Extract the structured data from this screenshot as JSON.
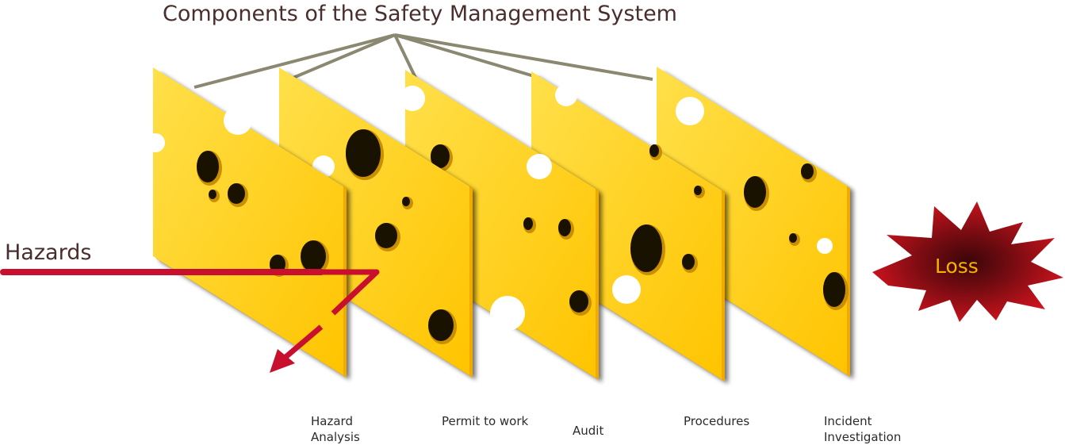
{
  "diagram": {
    "title": "Components of the Safety Management System",
    "hazards_label": "Hazards",
    "loss_label": "Loss",
    "layers": [
      {
        "id": "hazard-analysis",
        "label_lines": [
          "Hazard",
          "Analysis"
        ]
      },
      {
        "id": "permit-to-work",
        "label_lines": [
          "Permit to work"
        ]
      },
      {
        "id": "audit",
        "label_lines": [
          "Audit"
        ]
      },
      {
        "id": "procedures",
        "label_lines": [
          "Procedures"
        ]
      },
      {
        "id": "incident-investigation",
        "label_lines": [
          "Incident",
          "Investigation"
        ]
      }
    ],
    "colors": {
      "cheese_face": "#ffd21a",
      "cheese_edge": "#f2a900",
      "hole": "#1a1200",
      "hazard_line": "#c8102e",
      "connector_line": "#8a8870",
      "loss_burst": "#c8102e",
      "loss_burst_core": "#5a0d10",
      "loss_text": "#f5b300",
      "text": "#4a2e2e"
    },
    "icons": {
      "slice": "swiss-cheese-slice-icon",
      "loss": "explosion-burst-icon",
      "arrow": "deflected-arrow-icon"
    }
  }
}
